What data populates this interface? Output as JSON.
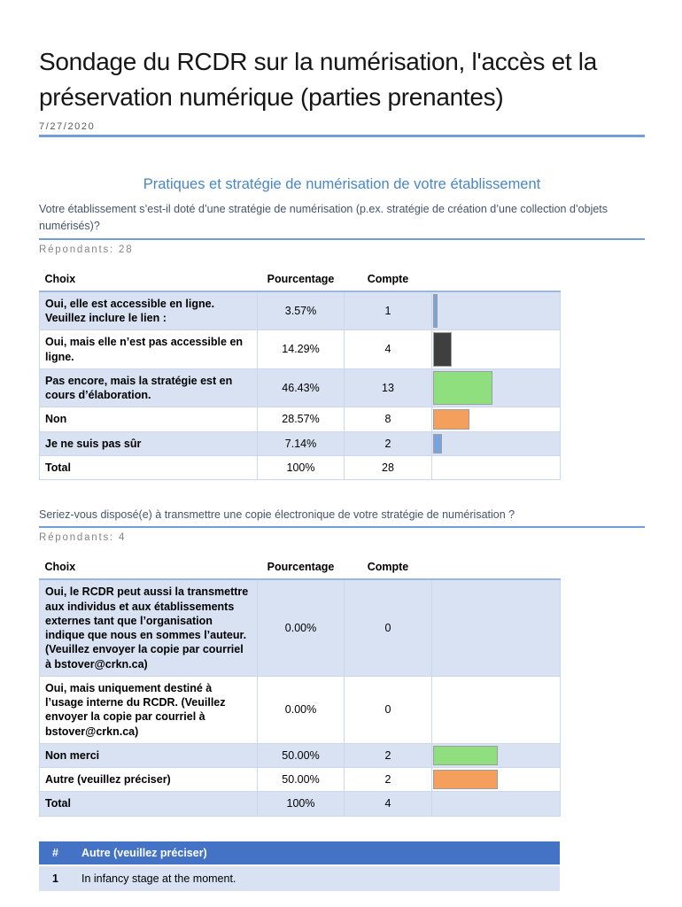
{
  "document": {
    "title": "Sondage du RCDR sur la numérisation, l'accès et la préservation numérique (parties prenantes)",
    "date": "7/27/2020"
  },
  "section_heading": "Pratiques et stratégie de numérisation de votre établissement",
  "colors": {
    "accent_rule": "#6F9FD8",
    "table_header_bar": "#4472C4",
    "row_shade": "#D8E2F2",
    "bar_blue": "#78A3DC",
    "bar_dark": "#3F3F3F",
    "bar_green": "#8FDF7F",
    "bar_orange": "#F4A05C"
  },
  "q1": {
    "question": "Votre établissement s’est-il doté d’une stratégie de numérisation (p.ex. stratégie de création d’une collection d’objets numérisés)?",
    "respondents": "Répondants: 28",
    "table": {
      "headers": {
        "choice": "Choix",
        "percentage": "Pourcentage",
        "count": "Compte"
      },
      "rows": [
        {
          "choice": "Oui, elle est accessible en ligne. Veuillez inclure le lien :",
          "pct": "3.57%",
          "count": "1",
          "bar_value": 3.57,
          "bar_color": "#78A3DC"
        },
        {
          "choice": "Oui, mais elle n’est pas accessible en ligne.",
          "pct": "14.29%",
          "count": "4",
          "bar_value": 14.29,
          "bar_color": "#3F3F3F",
          "bar_pattern": "dots"
        },
        {
          "choice": "Pas encore, mais la stratégie est en cours d’élaboration.",
          "pct": "46.43%",
          "count": "13",
          "bar_value": 46.43,
          "bar_color": "#8FDF7F"
        },
        {
          "choice": "Non",
          "pct": "28.57%",
          "count": "8",
          "bar_value": 28.57,
          "bar_color": "#F4A05C"
        },
        {
          "choice": "Je ne suis pas sûr",
          "pct": "7.14%",
          "count": "2",
          "bar_value": 7.14,
          "bar_color": "#78A3DC"
        },
        {
          "choice": "Total",
          "pct": "100%",
          "count": "28",
          "bar_value": 0
        }
      ]
    }
  },
  "q2": {
    "question": "Seriez-vous disposé(e) à transmettre une copie électronique de votre stratégie de numérisation ?",
    "respondents": "Répondants: 4",
    "table": {
      "headers": {
        "choice": "Choix",
        "percentage": "Pourcentage",
        "count": "Compte"
      },
      "rows": [
        {
          "choice": "Oui, le RCDR peut aussi la transmettre aux individus et aux établissements externes tant que l’organisation indique que nous en sommes l’auteur. (Veuillez envoyer la copie par courriel à bstover@crkn.ca)",
          "pct": "0.00%",
          "count": "0",
          "bar_value": 0
        },
        {
          "choice": "Oui, mais uniquement destiné à l’usage interne du RCDR. (Veuillez envoyer la copie par courriel à bstover@crkn.ca)",
          "pct": "0.00%",
          "count": "0",
          "bar_value": 0
        },
        {
          "choice": "Non merci",
          "pct": "50.00%",
          "count": "2",
          "bar_value": 50,
          "bar_color": "#8FDF7F"
        },
        {
          "choice": "Autre (veuillez préciser)",
          "pct": "50.00%",
          "count": "2",
          "bar_value": 50,
          "bar_color": "#F4A05C"
        },
        {
          "choice": "Total",
          "pct": "100%",
          "count": "4",
          "bar_value": 0
        }
      ]
    }
  },
  "other_table": {
    "headers": {
      "num": "#",
      "label": "Autre (veuillez préciser)"
    },
    "rows": [
      {
        "num": "1",
        "text": "In infancy stage at the moment."
      }
    ]
  },
  "chart_data": [
    {
      "type": "bar",
      "title": "Votre établissement s’est-il doté d’une stratégie de numérisation (p.ex. stratégie de création d’une collection d’objets numérisés)?",
      "categories": [
        "Oui, elle est accessible en ligne. Veuillez inclure le lien :",
        "Oui, mais elle n’est pas accessible en ligne.",
        "Pas encore, mais la stratégie est en cours d’élaboration.",
        "Non",
        "Je ne suis pas sûr"
      ],
      "values": [
        3.57,
        14.29,
        46.43,
        28.57,
        7.14
      ],
      "counts": [
        1,
        4,
        13,
        8,
        2
      ],
      "total_count": 28,
      "xlabel": "",
      "ylabel": "Pourcentage",
      "xlim": [
        0,
        100
      ]
    },
    {
      "type": "bar",
      "title": "Seriez-vous disposé(e) à transmettre une copie électronique de votre stratégie de numérisation ?",
      "categories": [
        "Oui, le RCDR peut aussi la transmettre aux individus et aux établissements externes tant que l’organisation indique que nous en sommes l’auteur. (Veuillez envoyer la copie par courriel à bstover@crkn.ca)",
        "Oui, mais uniquement destiné à l’usage interne du RCDR. (Veuillez envoyer la copie par courriel à bstover@crkn.ca)",
        "Non merci",
        "Autre (veuillez préciser)"
      ],
      "values": [
        0,
        0,
        50,
        50
      ],
      "counts": [
        0,
        0,
        2,
        2
      ],
      "total_count": 4,
      "xlabel": "",
      "ylabel": "Pourcentage",
      "xlim": [
        0,
        100
      ]
    }
  ]
}
